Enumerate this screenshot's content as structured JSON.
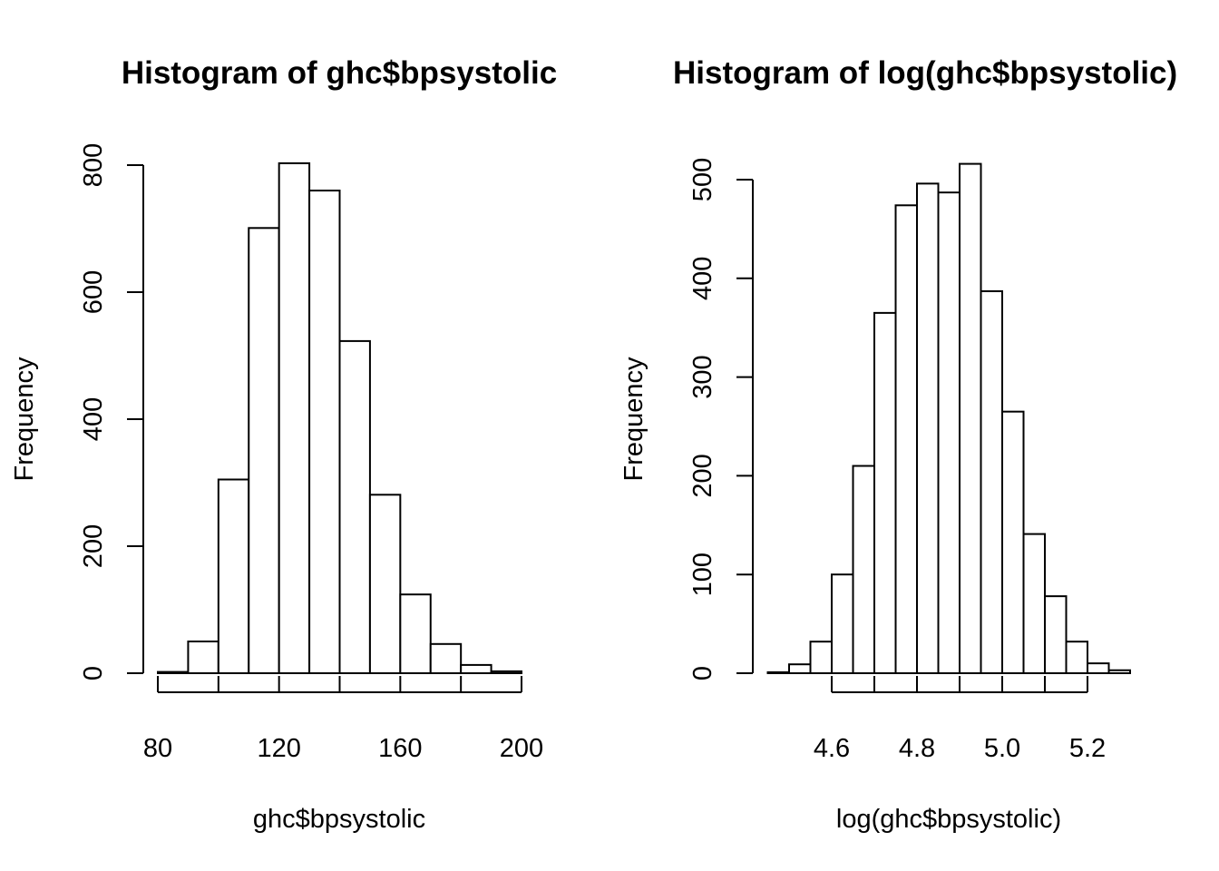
{
  "chart_data": [
    {
      "type": "bar",
      "title": "Histogram of ghc$bpsystolic",
      "xlabel": "ghc$bpsystolic",
      "ylabel": "Frequency",
      "bin_edges": [
        80,
        90,
        100,
        110,
        120,
        130,
        140,
        150,
        160,
        170,
        180,
        190,
        200
      ],
      "values": [
        2,
        50,
        305,
        701,
        803,
        760,
        523,
        281,
        124,
        46,
        13,
        3
      ],
      "xlim": [
        80,
        200
      ],
      "ylim": [
        0,
        800
      ],
      "x_ticks": [
        "80",
        "120",
        "160",
        "200"
      ],
      "x_tick_values": [
        80,
        120,
        160,
        200
      ],
      "x_minor_ticks": [
        80,
        100,
        120,
        140,
        160,
        180,
        200
      ],
      "y_ticks": [
        "0",
        "200",
        "400",
        "600",
        "800"
      ],
      "y_tick_values": [
        0,
        200,
        400,
        600,
        800
      ],
      "grid": false
    },
    {
      "type": "bar",
      "title": "Histogram of log(ghc$bpsystolic)",
      "xlabel": "log(ghc$bpsystolic)",
      "ylabel": "Frequency",
      "bin_edges": [
        4.45,
        4.5,
        4.55,
        4.6,
        4.65,
        4.7,
        4.75,
        4.8,
        4.85,
        4.9,
        4.95,
        5.0,
        5.05,
        5.1,
        5.15,
        5.2,
        5.25,
        5.3
      ],
      "values": [
        1,
        9,
        32,
        100,
        210,
        365,
        474,
        496,
        487,
        516,
        387,
        265,
        141,
        78,
        32,
        10,
        3
      ],
      "xlim": [
        4.6,
        5.2
      ],
      "ylim": [
        0,
        500
      ],
      "x_ticks": [
        "4.6",
        "4.8",
        "5.0",
        "5.2"
      ],
      "x_tick_values": [
        4.6,
        4.8,
        5.0,
        5.2
      ],
      "x_minor_ticks": [
        4.6,
        4.7,
        4.8,
        4.9,
        5.0,
        5.1,
        5.2
      ],
      "y_ticks": [
        "0",
        "100",
        "200",
        "300",
        "400",
        "500"
      ],
      "y_tick_values": [
        0,
        100,
        200,
        300,
        400,
        500
      ],
      "grid": false
    }
  ]
}
